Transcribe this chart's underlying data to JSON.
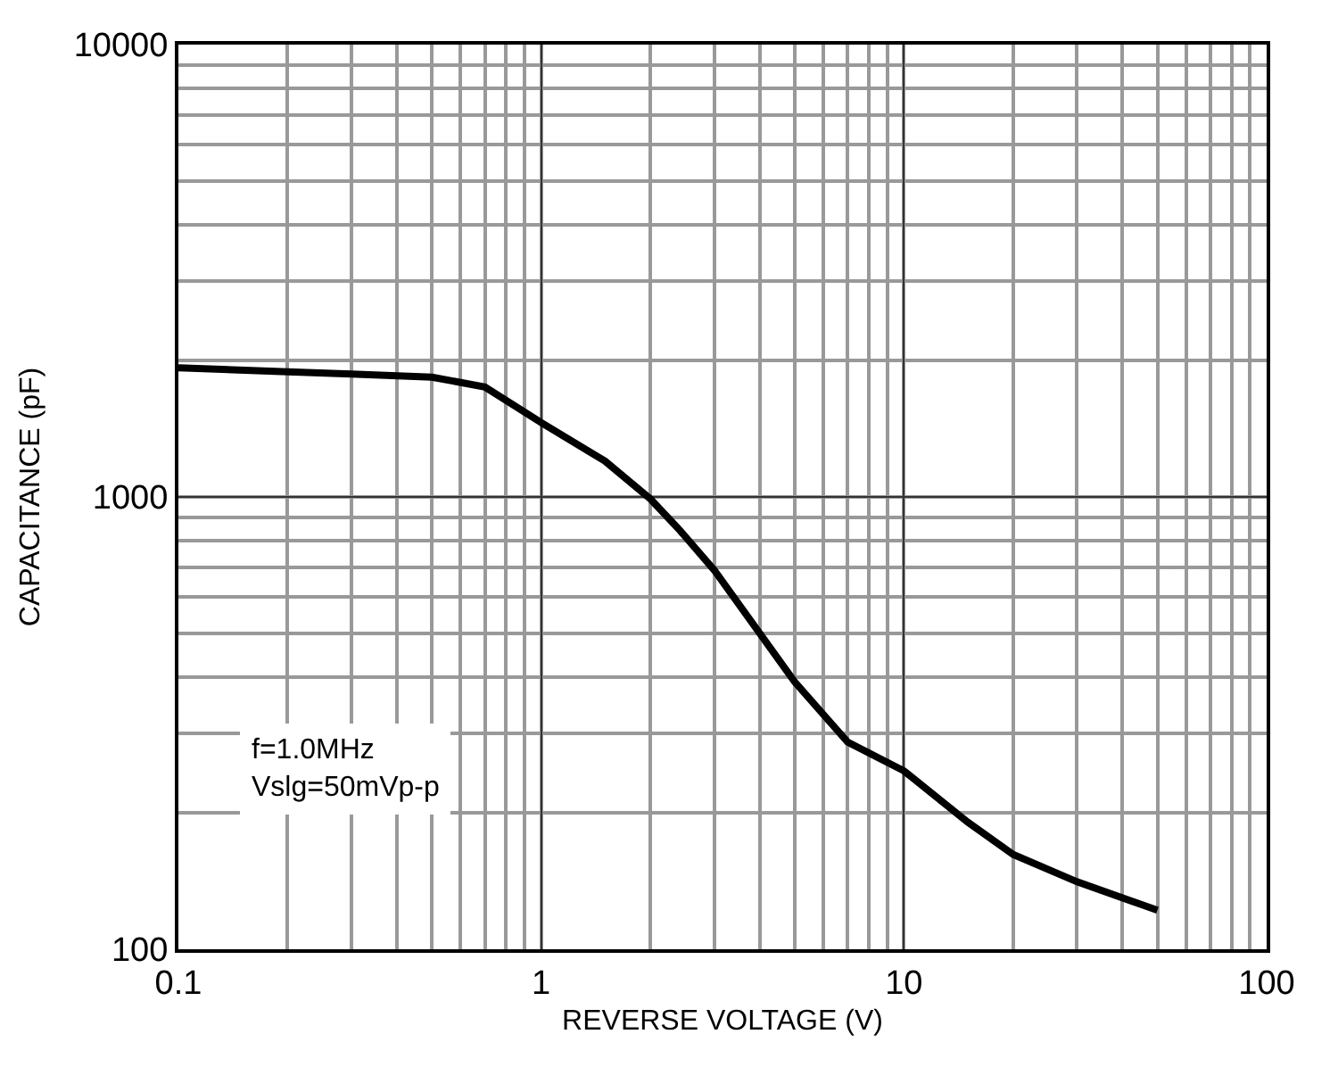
{
  "chart_data": {
    "type": "line",
    "xlabel": "REVERSE VOLTAGE (V)",
    "ylabel": "CAPACITANCE (pF)",
    "log": "xy",
    "grid": true,
    "legend": false,
    "marker": "none",
    "line_style": "solid",
    "xlim": [
      0.1,
      100
    ],
    "xticks": [
      0.1,
      1,
      10,
      100
    ],
    "ylim": [
      100,
      10000
    ],
    "yticks": [
      100,
      1000,
      10000
    ],
    "x": [
      0.1,
      0.2,
      0.3,
      0.5,
      0.7,
      1,
      1.5,
      2,
      2.42,
      3,
      5,
      7,
      10,
      15,
      20,
      30,
      50
    ],
    "series": [
      {
        "color": "#000000",
        "values": [
          1930,
          1890,
          1870,
          1840,
          1750,
          1460,
          1200,
          990,
          841,
          689,
          390,
          287,
          248,
          191,
          162,
          141,
          122
        ]
      }
    ],
    "annotations": [
      "f=1.0MHz\nVslg=50mVp-p"
    ]
  }
}
